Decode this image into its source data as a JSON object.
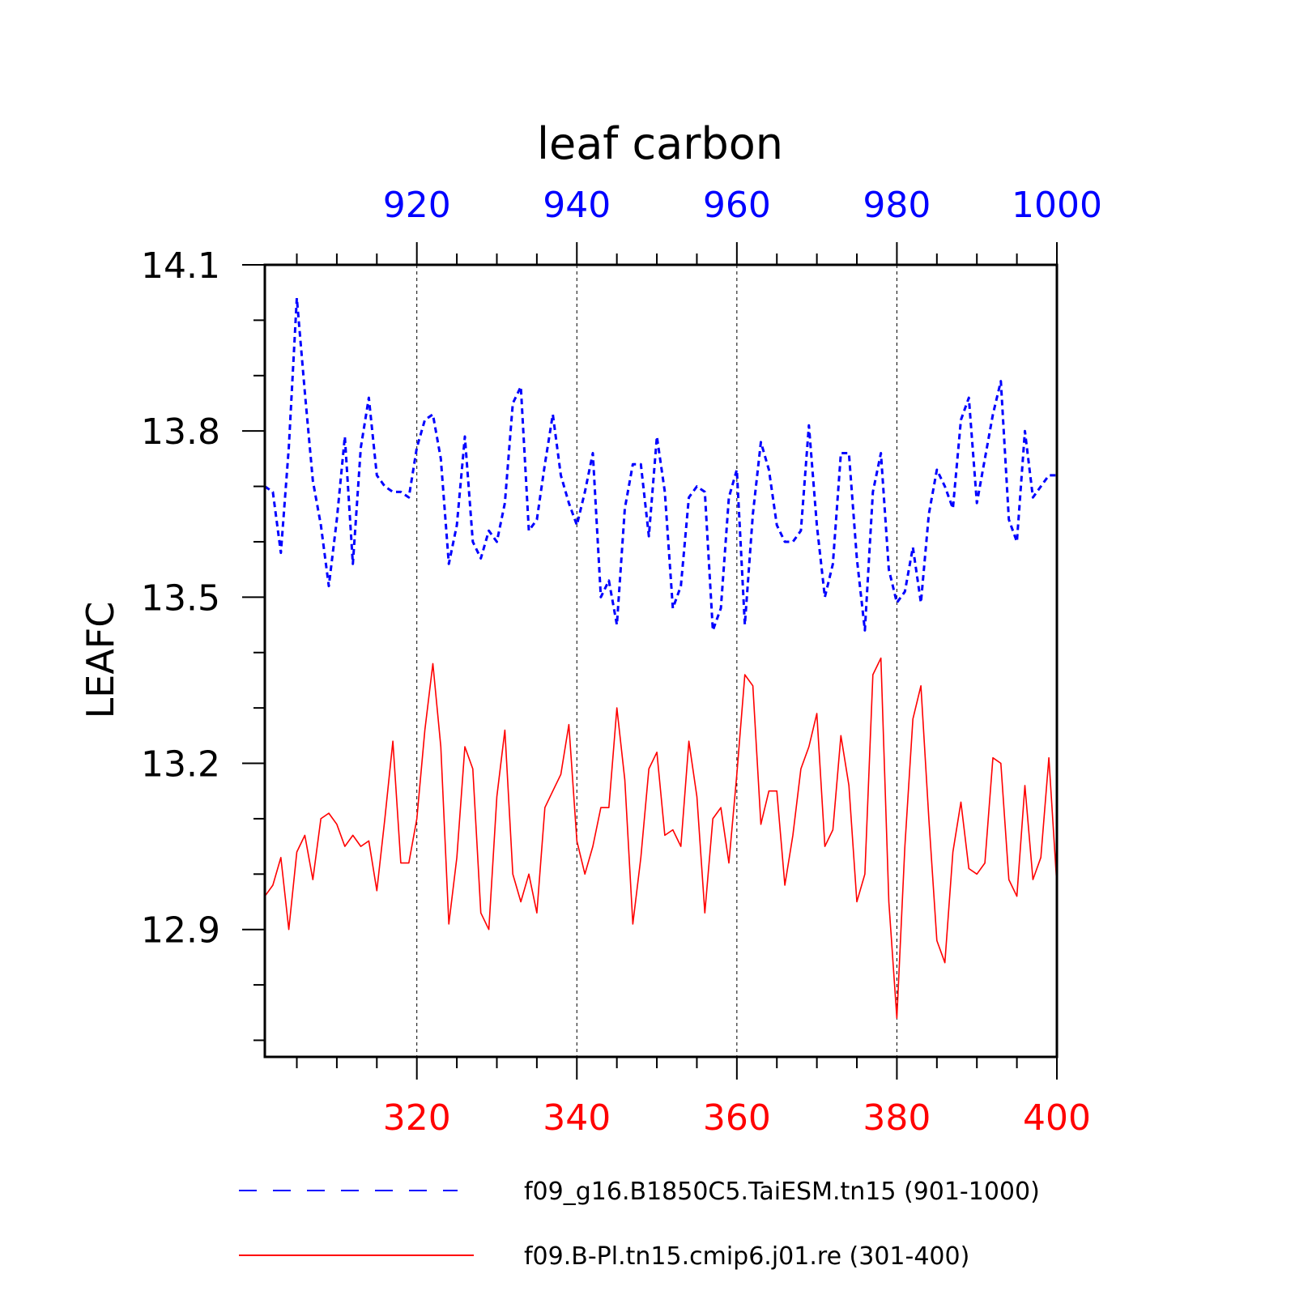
{
  "chart_data": {
    "type": "line",
    "title": "leaf carbon",
    "ylabel": "LEAFC",
    "ylim": [
      12.67,
      14.1
    ],
    "y_ticks": [
      12.9,
      13.2,
      13.5,
      13.8,
      14.1
    ],
    "y_tick_labels": [
      "12.9",
      "13.2",
      "13.5",
      "13.8",
      "14.1"
    ],
    "y_minor_step": 0.1,
    "x_bottom": {
      "range": [
        301,
        400
      ],
      "ticks": [
        320,
        340,
        360,
        380,
        400
      ],
      "tick_labels": [
        "320",
        "340",
        "360",
        "380",
        "400"
      ],
      "color": "#ff0000"
    },
    "x_top": {
      "range": [
        901,
        1000
      ],
      "ticks": [
        920,
        940,
        960,
        980,
        1000
      ],
      "tick_labels": [
        "920",
        "940",
        "960",
        "980",
        "1000"
      ],
      "color": "#0000ff"
    },
    "grid": "vertical dashed at major ticks",
    "legend_position": "bottom",
    "series": [
      {
        "name": "f09_g16.B1850C5.TaiESM.tn15 (901-1000)",
        "color": "#0000ff",
        "style": "dashed",
        "axis": "top",
        "x_start": 901,
        "values": [
          13.7,
          13.69,
          13.58,
          13.77,
          14.04,
          13.87,
          13.71,
          13.63,
          13.52,
          13.64,
          13.79,
          13.56,
          13.77,
          13.86,
          13.72,
          13.7,
          13.69,
          13.69,
          13.68,
          13.77,
          13.82,
          13.83,
          13.75,
          13.56,
          13.63,
          13.79,
          13.6,
          13.57,
          13.62,
          13.6,
          13.67,
          13.85,
          13.88,
          13.62,
          13.64,
          13.74,
          13.83,
          13.72,
          13.67,
          13.63,
          13.69,
          13.76,
          13.5,
          13.53,
          13.45,
          13.66,
          13.74,
          13.74,
          13.61,
          13.79,
          13.69,
          13.48,
          13.52,
          13.68,
          13.7,
          13.69,
          13.44,
          13.48,
          13.68,
          13.73,
          13.45,
          13.65,
          13.78,
          13.73,
          13.63,
          13.6,
          13.6,
          13.62,
          13.81,
          13.63,
          13.5,
          13.56,
          13.76,
          13.76,
          13.57,
          13.44,
          13.69,
          13.76,
          13.55,
          13.49,
          13.51,
          13.59,
          13.49,
          13.65,
          13.73,
          13.7,
          13.66,
          13.82,
          13.86,
          13.67,
          13.75,
          13.83,
          13.89,
          13.64,
          13.6,
          13.8,
          13.68,
          13.7,
          13.72,
          13.72
        ]
      },
      {
        "name": "f09.B-Pl.tn15.cmip6.j01.re (301-400)",
        "color": "#ff0000",
        "style": "solid",
        "axis": "bottom",
        "x_start": 301,
        "values": [
          12.96,
          12.98,
          13.03,
          12.9,
          13.04,
          13.07,
          12.99,
          13.1,
          13.11,
          13.09,
          13.05,
          13.07,
          13.05,
          13.06,
          12.97,
          13.1,
          13.24,
          13.02,
          13.02,
          13.1,
          13.26,
          13.38,
          13.23,
          12.91,
          13.03,
          13.23,
          13.19,
          12.93,
          12.9,
          13.14,
          13.26,
          13.0,
          12.95,
          13.0,
          12.93,
          13.12,
          13.15,
          13.18,
          13.27,
          13.06,
          13.0,
          13.05,
          13.12,
          13.12,
          13.3,
          13.17,
          12.91,
          13.03,
          13.19,
          13.22,
          13.07,
          13.08,
          13.05,
          13.24,
          13.14,
          12.93,
          13.1,
          13.12,
          13.02,
          13.18,
          13.36,
          13.34,
          13.09,
          13.15,
          13.15,
          12.98,
          13.07,
          13.19,
          13.23,
          13.29,
          13.05,
          13.08,
          13.25,
          13.16,
          12.95,
          13.0,
          13.36,
          13.39,
          12.95,
          12.74,
          13.05,
          13.28,
          13.34,
          13.1,
          12.88,
          12.84,
          13.04,
          13.13,
          13.01,
          13.0,
          13.02,
          13.21,
          13.2,
          12.99,
          12.96,
          13.16,
          12.99,
          13.03,
          13.21,
          12.98
        ]
      }
    ]
  }
}
